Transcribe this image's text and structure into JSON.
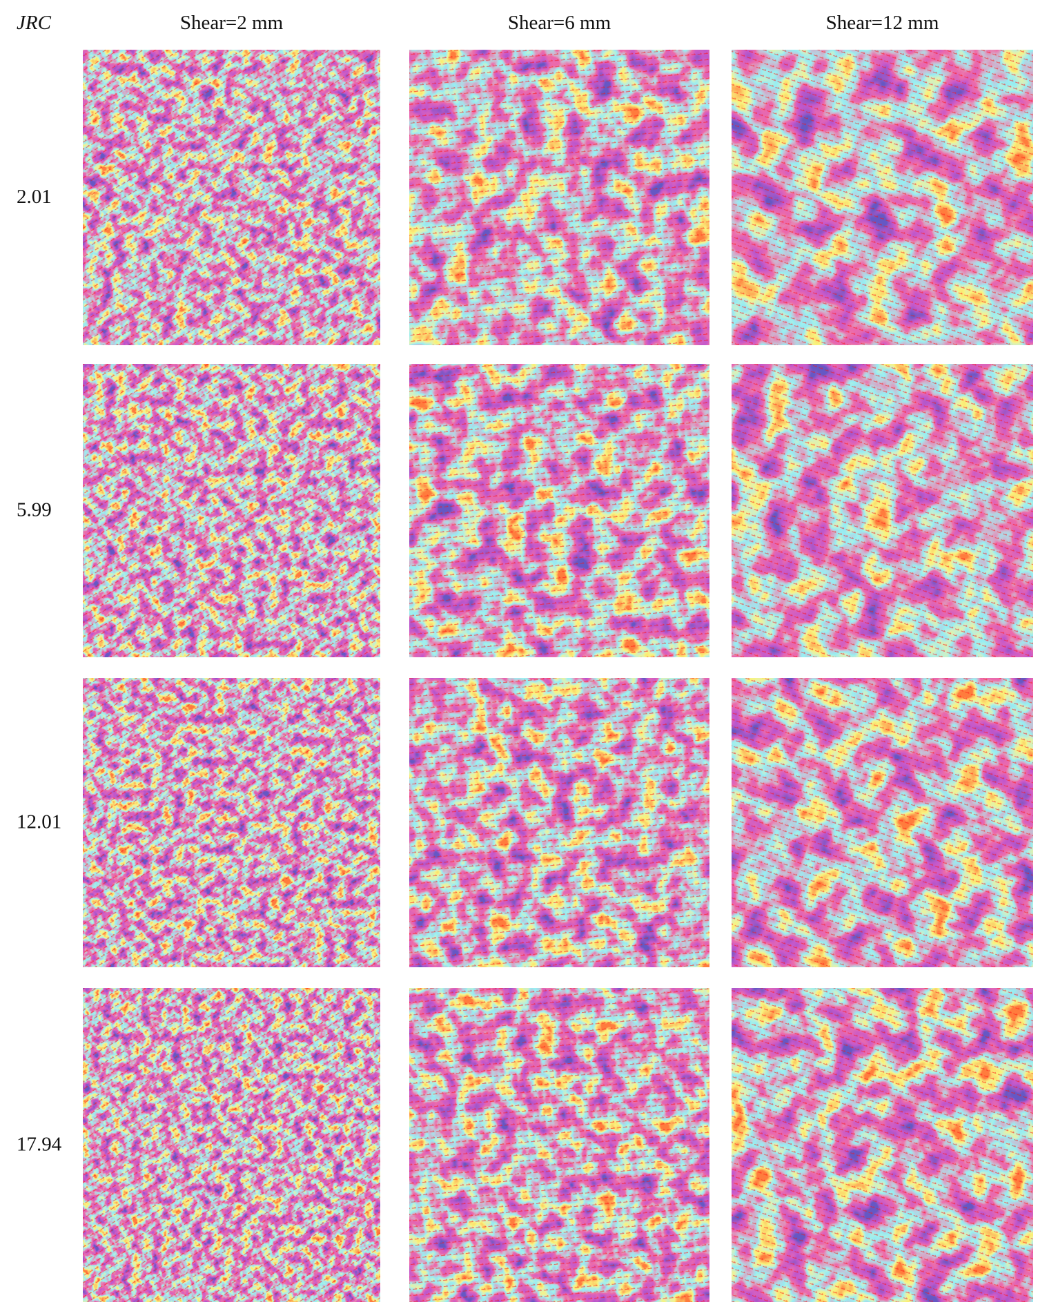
{
  "header": {
    "corner": "JRC",
    "columns": [
      "Shear=2 mm",
      "Shear=6 mm",
      "Shear=12 mm"
    ]
  },
  "rows": [
    {
      "label": "2.01"
    },
    {
      "label": "5.99"
    },
    {
      "label": "12.01"
    },
    {
      "label": "17.94"
    }
  ]
}
